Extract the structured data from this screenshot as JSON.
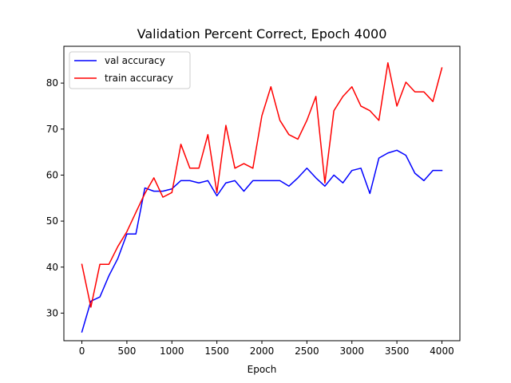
{
  "chart_data": {
    "type": "line",
    "title": "Validation Percent Correct, Epoch 4000",
    "xlabel": "Epoch",
    "ylabel": "",
    "xlim": [
      -200,
      4200
    ],
    "ylim": [
      24,
      88
    ],
    "xticks": [
      0,
      500,
      1000,
      1500,
      2000,
      2500,
      3000,
      3500,
      4000
    ],
    "yticks": [
      30,
      40,
      50,
      60,
      70,
      80
    ],
    "grid": false,
    "legend_position": "upper-left",
    "x": [
      0,
      100,
      200,
      300,
      400,
      500,
      600,
      700,
      800,
      900,
      1000,
      1100,
      1200,
      1300,
      1400,
      1500,
      1600,
      1700,
      1800,
      1900,
      2000,
      2100,
      2200,
      2300,
      2400,
      2500,
      2600,
      2700,
      2800,
      2900,
      3000,
      3100,
      3200,
      3300,
      3400,
      3500,
      3600,
      3700,
      3800,
      3900,
      4000
    ],
    "series": [
      {
        "name": "val accuracy",
        "color": "#0000ff",
        "values": [
          25.9,
          32.6,
          33.5,
          38.1,
          41.9,
          47.2,
          47.2,
          57.2,
          56.5,
          56.5,
          57.0,
          58.8,
          58.8,
          58.3,
          58.8,
          55.5,
          58.3,
          58.8,
          56.5,
          58.8,
          58.8,
          58.8,
          58.8,
          57.6,
          59.4,
          61.5,
          59.4,
          57.6,
          60.0,
          58.3,
          61.0,
          61.5,
          56.0,
          63.7,
          64.8,
          65.4,
          64.3,
          60.4,
          58.8,
          61.0,
          61.0
        ]
      },
      {
        "name": "train accuracy",
        "color": "#ff0000",
        "values": [
          40.6,
          31.3,
          40.6,
          40.6,
          44.5,
          47.7,
          51.9,
          56.0,
          59.4,
          55.2,
          56.2,
          66.7,
          61.5,
          61.5,
          68.8,
          56.2,
          70.8,
          61.5,
          62.5,
          61.5,
          72.9,
          79.2,
          71.9,
          68.8,
          67.8,
          71.9,
          77.1,
          58.3,
          74.0,
          77.1,
          79.2,
          75.0,
          74.0,
          71.9,
          84.4,
          75.0,
          80.2,
          78.1,
          78.1,
          76.0,
          83.3
        ]
      }
    ]
  }
}
